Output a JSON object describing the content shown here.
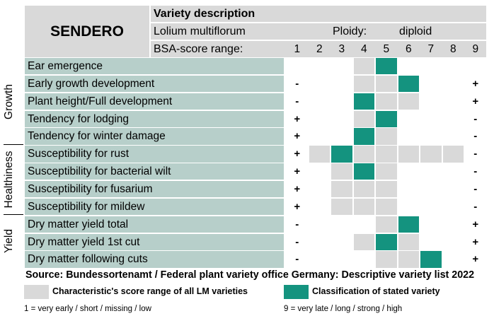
{
  "variety": "SENDERO",
  "header": {
    "title": "Variety description",
    "species": "Lolium multiflorum",
    "ploidy_label": "Ploidy:",
    "ploidy_value": "diploid",
    "range_label": "BSA-score range:",
    "scores": [
      "1",
      "2",
      "3",
      "4",
      "5",
      "6",
      "7",
      "8",
      "9"
    ]
  },
  "groups": [
    {
      "label": "Growth",
      "rows": [
        0,
        4
      ]
    },
    {
      "label": "Healthiness",
      "rows": [
        5,
        8
      ]
    },
    {
      "label": "Yield",
      "rows": [
        9,
        11
      ]
    }
  ],
  "traits": [
    {
      "name": "Ear emergence",
      "left": "",
      "right": "",
      "range": [
        4,
        5
      ],
      "selected": 5
    },
    {
      "name": "Early growth development",
      "left": "-",
      "right": "+",
      "range": [
        4,
        6
      ],
      "selected": 6
    },
    {
      "name": "Plant height/Full development",
      "left": "-",
      "right": "+",
      "range": [
        4,
        6
      ],
      "selected": 4
    },
    {
      "name": "Tendency for lodging",
      "left": "+",
      "right": "-",
      "range": [
        4,
        5
      ],
      "selected": 5
    },
    {
      "name": "Tendency for winter damage",
      "left": "+",
      "right": "-",
      "range": [
        4,
        5
      ],
      "selected": 4
    },
    {
      "name": "Susceptibility for rust",
      "left": "+",
      "right": "-",
      "range": [
        2,
        8
      ],
      "selected": 3
    },
    {
      "name": "Susceptibility for bacterial wilt",
      "left": "+",
      "right": "-",
      "range": [
        3,
        5
      ],
      "selected": 4
    },
    {
      "name": "Susceptibility for fusarium",
      "left": "+",
      "right": "-",
      "range": [
        3,
        5
      ],
      "selected": null
    },
    {
      "name": "Susceptibility for mildew",
      "left": "+",
      "right": "-",
      "range": [
        3,
        5
      ],
      "selected": null
    },
    {
      "name": "Dry matter yield total",
      "left": "-",
      "right": "+",
      "range": [
        5,
        6
      ],
      "selected": 6
    },
    {
      "name": "Dry matter yield 1st cut",
      "left": "-",
      "right": "+",
      "range": [
        4,
        6
      ],
      "selected": 5
    },
    {
      "name": "Dry matter following cuts",
      "left": "-",
      "right": "+",
      "range": [
        5,
        7
      ],
      "selected": 7
    }
  ],
  "source": "Source: Bundessortenamt / Federal plant variety office Germany: Descriptive variety list 2022",
  "legend": {
    "range_label": "Characteristic's score range of all LM varieties",
    "selected_label": "Classification of stated variety",
    "range_color": "#d9d9d9",
    "selected_color": "#14937f"
  },
  "scale_low": "1 = very early / short / missing / low",
  "scale_high": "9 = very late / long / strong / high"
}
